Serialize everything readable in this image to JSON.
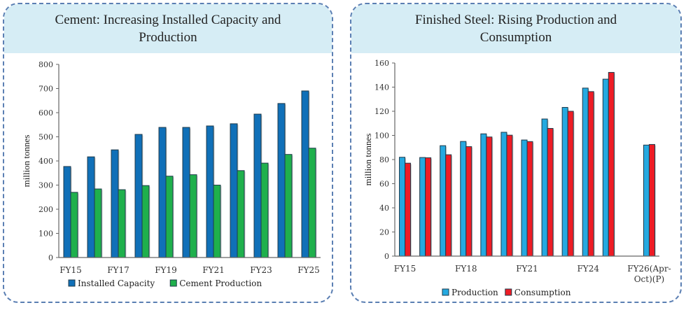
{
  "chart_data": [
    {
      "type": "bar",
      "title": "Cement: Increasing Installed Capacity and Production",
      "xlabel": "",
      "ylabel": "million tonnes",
      "ylim": [
        0,
        800
      ],
      "yticks": [
        0,
        100,
        200,
        300,
        400,
        500,
        600,
        700,
        800
      ],
      "categories": [
        "FY15",
        "FY16",
        "FY17",
        "FY18",
        "FY19",
        "FY20",
        "FY21",
        "FY22",
        "FY23",
        "FY24",
        "FY25"
      ],
      "xtick_labels": [
        "FY15",
        "",
        "FY17",
        "",
        "FY19",
        "",
        "FY21",
        "",
        "FY23",
        "",
        "FY25"
      ],
      "series": [
        {
          "name": "Installed Capacity",
          "color": "#1070b8",
          "values": [
            377,
            417,
            446,
            510,
            539,
            539,
            545,
            554,
            594,
            638,
            690
          ]
        },
        {
          "name": "Cement Production",
          "color": "#1fb04c",
          "values": [
            270,
            284,
            281,
            298,
            337,
            343,
            300,
            360,
            391,
            427,
            453
          ]
        }
      ],
      "legend": "bottom",
      "grid": false
    },
    {
      "type": "bar",
      "title": "Finished Steel: Rising Production and Consumption",
      "xlabel": "",
      "ylabel": "million tonnes",
      "ylim": [
        0,
        160
      ],
      "yticks": [
        0,
        20,
        40,
        60,
        80,
        100,
        120,
        140,
        160
      ],
      "categories": [
        "FY15",
        "FY16",
        "FY17",
        "FY18",
        "FY19",
        "FY20",
        "FY21",
        "FY22",
        "FY23",
        "FY24",
        "FY25",
        "",
        "FY26(Apr-Oct)(P)"
      ],
      "xtick_labels": [
        "FY15",
        "",
        "",
        "FY18",
        "",
        "",
        "FY21",
        "",
        "",
        "FY24",
        "",
        "",
        "FY26(Apr-\nOct)(P)"
      ],
      "series": [
        {
          "name": "Production",
          "color": "#25a9e0",
          "values": [
            81.9,
            81.7,
            91.5,
            95.0,
            101.3,
            102.6,
            96.2,
            113.6,
            123.2,
            139.2,
            146.6,
            null,
            92.0
          ]
        },
        {
          "name": "Consumption",
          "color": "#ee1c25",
          "values": [
            77.0,
            81.5,
            84.0,
            90.7,
            98.7,
            100.2,
            94.9,
            105.8,
            120.0,
            136.3,
            152.2,
            null,
            92.5
          ]
        }
      ],
      "legend": "bottom",
      "grid": false
    }
  ]
}
